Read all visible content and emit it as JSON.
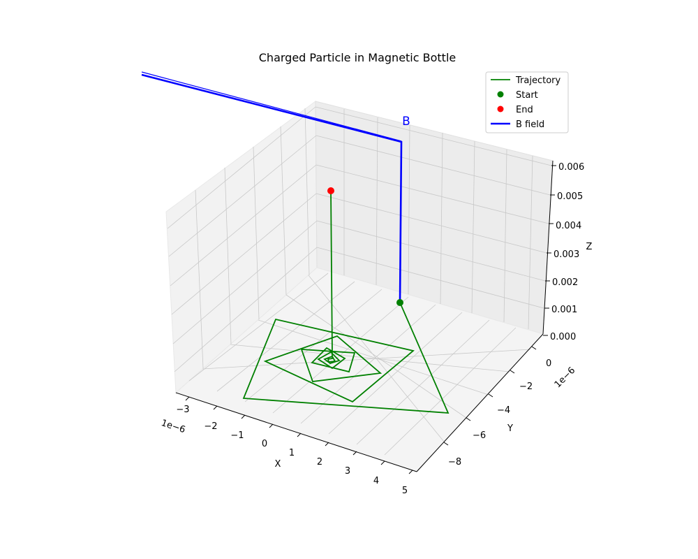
{
  "chart_data": {
    "type": "line3d",
    "title": "Charged Particle in Magnetic Bottle",
    "xlabel": "X",
    "ylabel": "Y",
    "zlabel": "Z",
    "x_scale_label": "1e−6",
    "y_scale_label": "1e−6",
    "x_ticks": [
      "−3",
      "−2",
      "−1",
      "0",
      "1",
      "2",
      "3",
      "4",
      "5"
    ],
    "y_ticks": [
      "0",
      "−2",
      "−4",
      "−6",
      "−8"
    ],
    "z_ticks": [
      "0.000",
      "0.001",
      "0.002",
      "0.003",
      "0.004",
      "0.005",
      "0.006"
    ],
    "xlim": [
      -3.5,
      5
    ],
    "ylim": [
      -9,
      1
    ],
    "zlim": [
      0,
      0.006
    ],
    "b_label": "B",
    "grid": true,
    "legend_position": "top-right",
    "legend": [
      {
        "label": "Trajectory",
        "kind": "line",
        "color": "#008000"
      },
      {
        "label": "Start",
        "kind": "marker",
        "color": "#008000"
      },
      {
        "label": "End",
        "kind": "marker",
        "color": "#ff0000"
      },
      {
        "label": "B field",
        "kind": "line",
        "color": "#0000ff"
      }
    ],
    "series": [
      {
        "name": "Trajectory",
        "color": "#008000"
      },
      {
        "name": "B field",
        "color": "#0000ff"
      }
    ]
  }
}
